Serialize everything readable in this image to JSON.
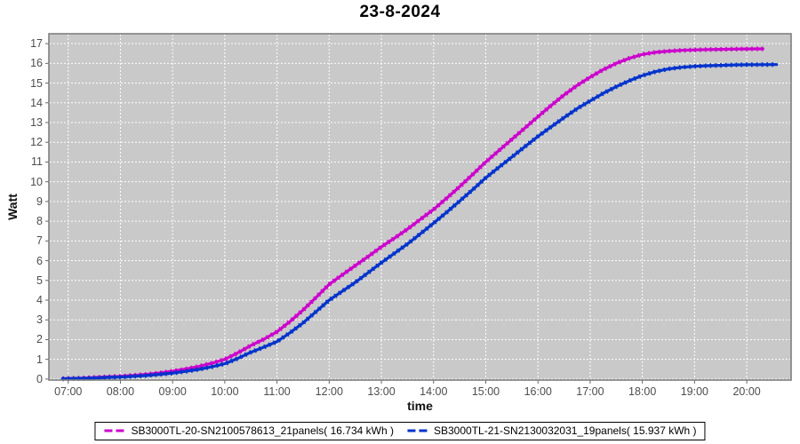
{
  "header": {
    "title": "23-8-2024"
  },
  "legend": {
    "entries": [
      {
        "label": "SB3000TL-20-SN2100578613_21panels( 16.734 kWh )",
        "color": "#CC00CC"
      },
      {
        "label": "SB3000TL-21-SN2130032031_19panels( 15.937 kWh )",
        "color": "#0033CC"
      }
    ]
  },
  "chart_data": {
    "type": "line",
    "title": "23-8-2024",
    "xlabel": "time",
    "ylabel": "Watt",
    "xlim": [
      6.63,
      20.85
    ],
    "ylim": [
      -0.05,
      17.5
    ],
    "grid": true,
    "legend_position": "bottom",
    "x_tick_values": [
      7,
      8,
      9,
      10,
      11,
      12,
      13,
      14,
      15,
      16,
      17,
      18,
      19,
      20
    ],
    "x_tick_labels": [
      "07:00",
      "08:00",
      "09:00",
      "10:00",
      "11:00",
      "12:00",
      "13:00",
      "14:00",
      "15:00",
      "16:00",
      "17:00",
      "18:00",
      "19:00",
      "20:00"
    ],
    "y_tick_values": [
      0,
      1,
      2,
      3,
      4,
      5,
      6,
      7,
      8,
      9,
      10,
      11,
      12,
      13,
      14,
      15,
      16,
      17
    ],
    "y_tick_labels": [
      "0",
      "1",
      "2",
      "3",
      "4",
      "5",
      "6",
      "7",
      "8",
      "9",
      "10",
      "11",
      "12",
      "13",
      "14",
      "15",
      "16",
      "17"
    ],
    "colors": {
      "plot_bg": "#C9C9C9",
      "grid": "#FFFFFF",
      "plot_border": "#7F7F7F",
      "tick_mark": "#666666",
      "tick_label": "#4D4D4D",
      "title": "#000000"
    },
    "series": [
      {
        "name": "SB3000TL-20-SN2100578613_21panels( 16.734 kWh )",
        "color": "#CC00CC",
        "total_kwh": 16.734,
        "points": [
          [
            6.89,
            0.02
          ],
          [
            7.0,
            0.03
          ],
          [
            7.25,
            0.05
          ],
          [
            7.5,
            0.08
          ],
          [
            7.75,
            0.11
          ],
          [
            8.0,
            0.14
          ],
          [
            8.25,
            0.19
          ],
          [
            8.5,
            0.24
          ],
          [
            8.75,
            0.31
          ],
          [
            9.0,
            0.4
          ],
          [
            9.25,
            0.51
          ],
          [
            9.5,
            0.64
          ],
          [
            9.75,
            0.8
          ],
          [
            10.0,
            1.0
          ],
          [
            10.25,
            1.33
          ],
          [
            10.5,
            1.7
          ],
          [
            10.75,
            2.02
          ],
          [
            11.0,
            2.4
          ],
          [
            11.25,
            2.92
          ],
          [
            11.5,
            3.5
          ],
          [
            11.75,
            4.14
          ],
          [
            12.0,
            4.8
          ],
          [
            12.25,
            5.28
          ],
          [
            12.5,
            5.75
          ],
          [
            12.75,
            6.22
          ],
          [
            13.0,
            6.7
          ],
          [
            13.25,
            7.14
          ],
          [
            13.5,
            7.6
          ],
          [
            13.75,
            8.1
          ],
          [
            14.0,
            8.6
          ],
          [
            14.25,
            9.16
          ],
          [
            14.5,
            9.75
          ],
          [
            14.75,
            10.37
          ],
          [
            15.0,
            11.0
          ],
          [
            15.25,
            11.58
          ],
          [
            15.5,
            12.15
          ],
          [
            15.75,
            12.72
          ],
          [
            16.0,
            13.3
          ],
          [
            16.25,
            13.86
          ],
          [
            16.5,
            14.4
          ],
          [
            16.75,
            14.88
          ],
          [
            17.0,
            15.3
          ],
          [
            17.25,
            15.68
          ],
          [
            17.5,
            16.0
          ],
          [
            17.75,
            16.26
          ],
          [
            18.0,
            16.45
          ],
          [
            18.25,
            16.56
          ],
          [
            18.5,
            16.62
          ],
          [
            18.75,
            16.66
          ],
          [
            19.0,
            16.68
          ],
          [
            19.25,
            16.7
          ],
          [
            19.5,
            16.71
          ],
          [
            19.75,
            16.72
          ],
          [
            20.0,
            16.73
          ],
          [
            20.31,
            16.734
          ]
        ]
      },
      {
        "name": "SB3000TL-21-SN2130032031_19panels( 15.937 kWh )",
        "color": "#0033CC",
        "total_kwh": 15.937,
        "points": [
          [
            6.89,
            0.01
          ],
          [
            7.0,
            0.02
          ],
          [
            7.25,
            0.03
          ],
          [
            7.5,
            0.05
          ],
          [
            7.75,
            0.08
          ],
          [
            8.0,
            0.1
          ],
          [
            8.25,
            0.14
          ],
          [
            8.5,
            0.18
          ],
          [
            8.75,
            0.24
          ],
          [
            9.0,
            0.3
          ],
          [
            9.25,
            0.39
          ],
          [
            9.5,
            0.49
          ],
          [
            9.75,
            0.62
          ],
          [
            10.0,
            0.78
          ],
          [
            10.25,
            1.05
          ],
          [
            10.5,
            1.36
          ],
          [
            10.75,
            1.62
          ],
          [
            11.0,
            1.9
          ],
          [
            11.25,
            2.35
          ],
          [
            11.5,
            2.85
          ],
          [
            11.75,
            3.42
          ],
          [
            12.0,
            4.0
          ],
          [
            12.25,
            4.45
          ],
          [
            12.5,
            4.9
          ],
          [
            12.75,
            5.4
          ],
          [
            13.0,
            5.9
          ],
          [
            13.25,
            6.37
          ],
          [
            13.5,
            6.85
          ],
          [
            13.75,
            7.37
          ],
          [
            14.0,
            7.9
          ],
          [
            14.25,
            8.45
          ],
          [
            14.5,
            9.02
          ],
          [
            14.75,
            9.6
          ],
          [
            15.0,
            10.2
          ],
          [
            15.25,
            10.73
          ],
          [
            15.5,
            11.25
          ],
          [
            15.75,
            11.78
          ],
          [
            16.0,
            12.3
          ],
          [
            16.25,
            12.78
          ],
          [
            16.5,
            13.25
          ],
          [
            16.75,
            13.7
          ],
          [
            17.0,
            14.1
          ],
          [
            17.25,
            14.48
          ],
          [
            17.5,
            14.82
          ],
          [
            17.75,
            15.12
          ],
          [
            18.0,
            15.38
          ],
          [
            18.25,
            15.58
          ],
          [
            18.5,
            15.72
          ],
          [
            18.75,
            15.8
          ],
          [
            19.0,
            15.85
          ],
          [
            19.25,
            15.88
          ],
          [
            19.5,
            15.9
          ],
          [
            19.75,
            15.92
          ],
          [
            20.0,
            15.93
          ],
          [
            20.25,
            15.935
          ],
          [
            20.57,
            15.937
          ]
        ]
      }
    ]
  }
}
